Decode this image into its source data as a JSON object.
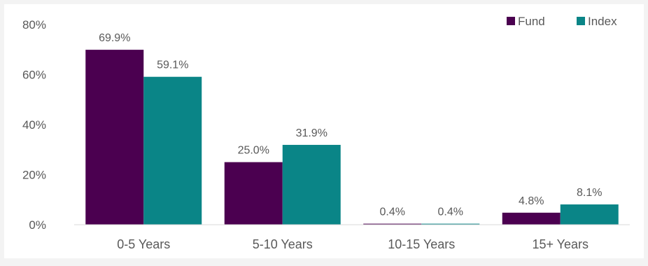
{
  "colors": {
    "background": "#f3f3f3",
    "frame": "#ffffff",
    "fund": "#4b0050",
    "index": "#0a8587",
    "axis_line": "#d9d9d9",
    "text": "#595959"
  },
  "legend": {
    "placement": "top-right",
    "items": [
      {
        "label": "Fund",
        "color_key": "fund"
      },
      {
        "label": "Index",
        "color_key": "index"
      }
    ]
  },
  "chart_data": {
    "type": "bar",
    "title": "",
    "xlabel": "",
    "ylabel": "",
    "categories": [
      "0-5 Years",
      "5-10 Years",
      "10-15 Years",
      "15+ Years"
    ],
    "series": [
      {
        "name": "Fund",
        "values": [
          69.9,
          25.0,
          0.4,
          4.8
        ],
        "labels": [
          "69.9%",
          "25.0%",
          "0.4%",
          "4.8%"
        ]
      },
      {
        "name": "Index",
        "values": [
          59.1,
          31.9,
          0.4,
          8.1
        ],
        "labels": [
          "59.1%",
          "31.9%",
          "0.4%",
          "8.1%"
        ]
      }
    ],
    "ylim": [
      0,
      80
    ],
    "yticks": [
      0,
      20,
      40,
      60,
      80
    ],
    "ytick_labels": [
      "0%",
      "20%",
      "40%",
      "60%",
      "80%"
    ],
    "grid": false,
    "legend_placement": "top-right"
  }
}
